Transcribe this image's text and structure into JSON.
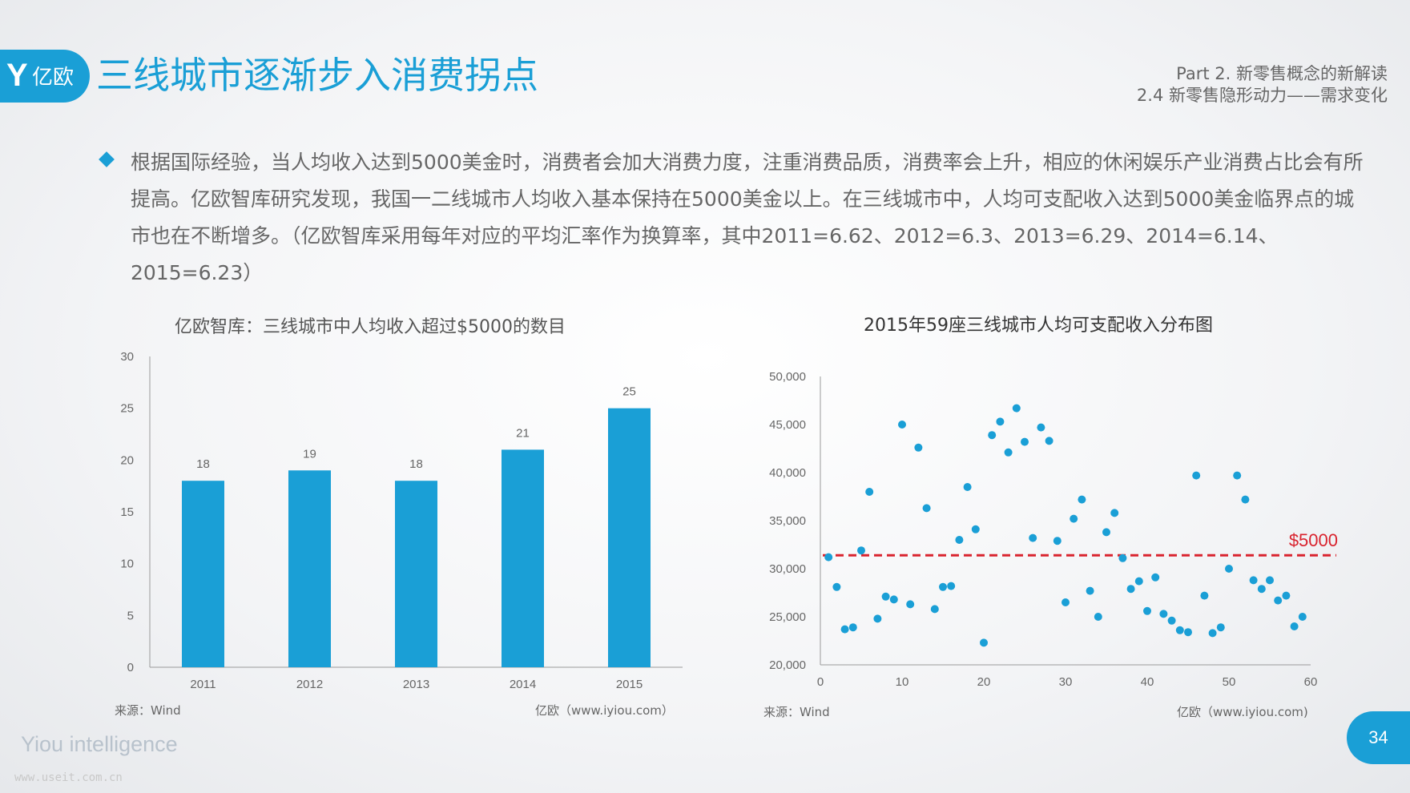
{
  "header": {
    "logo_mark": "Y",
    "logo_text": "亿欧",
    "title": "三线城市逐渐步入消费拐点",
    "section_line1": "Part 2. 新零售概念的新解读",
    "section_line2": "2.4 新零售隐形动力——需求变化"
  },
  "body": {
    "bullet_text": "根据国际经验，当人均收入达到5000美金时，消费者会加大消费力度，注重消费品质，消费率会上升，相应的休闲娱乐产业消费占比会有所提高。亿欧智库研究发现，我国一二线城市人均收入基本保持在5000美金以上。在三线城市中，人均可支配收入达到5000美金临界点的城市也在不断增多。（亿欧智库采用每年对应的平均汇率作为换算率，其中2011=6.62、2012=6.3、2013=6.29、2014=6.14、2015=6.23）"
  },
  "chart_data": [
    {
      "type": "bar",
      "title": "亿欧智库：三线城市中人均收入超过$5000的数目",
      "categories": [
        "2011",
        "2012",
        "2013",
        "2014",
        "2015"
      ],
      "values": [
        18,
        19,
        18,
        21,
        25
      ],
      "ylim": [
        0,
        30
      ],
      "yticks": [
        0,
        5,
        10,
        15,
        20,
        25,
        30
      ],
      "color": "#1a9fd6",
      "source_note": "来源：Wind",
      "credit_note": "亿欧（www.iyiou.com）"
    },
    {
      "type": "scatter",
      "title": "2015年59座三线城市人均可支配收入分布图",
      "xlim": [
        0,
        60
      ],
      "xticks": [
        0,
        10,
        20,
        30,
        40,
        50,
        60
      ],
      "ylim": [
        20000,
        50000
      ],
      "yticks": [
        "20,000",
        "25,000",
        "30,000",
        "35,000",
        "40,000",
        "45,000",
        "50,000"
      ],
      "color": "#1a9fd6",
      "threshold": {
        "value": 31400,
        "label": "$5000",
        "color": "#d9232e"
      },
      "x": [
        1,
        2,
        3,
        4,
        5,
        6,
        7,
        8,
        9,
        10,
        11,
        12,
        13,
        14,
        15,
        16,
        17,
        18,
        19,
        20,
        21,
        22,
        23,
        24,
        25,
        26,
        27,
        28,
        29,
        30,
        31,
        32,
        33,
        34,
        35,
        36,
        37,
        38,
        39,
        40,
        41,
        42,
        43,
        44,
        45,
        46,
        47,
        48,
        49,
        50,
        51,
        52,
        53,
        54,
        55,
        56,
        57,
        58,
        59
      ],
      "y": [
        31200,
        28100,
        23700,
        23900,
        31900,
        38000,
        24800,
        27100,
        26800,
        45000,
        26300,
        42600,
        36300,
        25800,
        28100,
        28200,
        33000,
        38500,
        34100,
        22300,
        43900,
        45300,
        42100,
        46700,
        43200,
        33200,
        44700,
        43300,
        32900,
        26500,
        35200,
        37200,
        27700,
        25000,
        33800,
        35800,
        31100,
        27900,
        28700,
        25600,
        29100,
        25300,
        24600,
        23600,
        23400,
        39700,
        27200,
        23300,
        23900,
        30000,
        39700,
        37200,
        28800,
        27900,
        28800,
        26700,
        27200,
        24000,
        25000
      ],
      "source_note": "来源：Wind",
      "credit_note": "亿欧（www.iyiou.com)"
    }
  ],
  "footer": {
    "brand": "Yiou intelligence",
    "watermark": "www.useit.com.cn",
    "page_number": "34"
  }
}
